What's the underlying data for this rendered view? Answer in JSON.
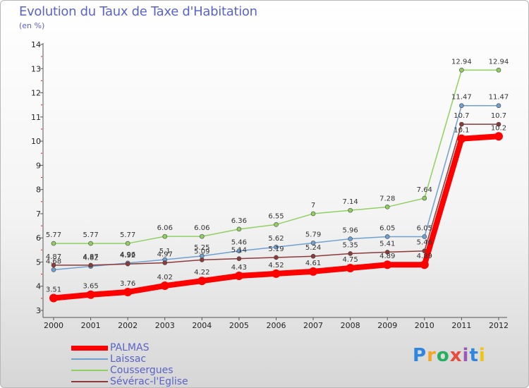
{
  "chart_data": {
    "type": "line",
    "title": "Evolution du Taux de Taxe d'Habitation",
    "subtitle": "(en %)",
    "x": [
      "2000",
      "2001",
      "2002",
      "2003",
      "2004",
      "2005",
      "2006",
      "2007",
      "2008",
      "2009",
      "2010",
      "2011",
      "2012"
    ],
    "ylim": [
      3,
      14
    ],
    "yticks": [
      "3",
      "4",
      "5",
      "6",
      "7",
      "8",
      "9",
      "10",
      "11",
      "12",
      "13",
      "14"
    ],
    "grid": false,
    "legend_position": "bottom-left",
    "series": [
      {
        "name": "PALMAS",
        "color": "#ff0000",
        "values": [
          3.51,
          3.65,
          3.76,
          4.02,
          4.22,
          4.43,
          4.52,
          4.61,
          4.75,
          4.89,
          4.89,
          10.1,
          10.2
        ],
        "labels": [
          "3.51",
          "3.65",
          "3.76",
          "4.02",
          "4.22",
          "4.43",
          "4.52",
          "4.61",
          "4.75",
          "4.89",
          "4.89",
          "10.1",
          "10.2"
        ]
      },
      {
        "name": "Laissac",
        "color": "#6ea0d0",
        "values": [
          4.68,
          4.82,
          4.96,
          5.1,
          5.25,
          5.46,
          5.62,
          5.79,
          5.96,
          6.05,
          6.05,
          11.47,
          11.47
        ],
        "labels": [
          "4.68",
          "4.82",
          "4.96",
          "5.1",
          "5.25",
          "5.46",
          "5.62",
          "5.79",
          "5.96",
          "6.05",
          "6.05",
          "11.47",
          "11.47"
        ]
      },
      {
        "name": "Coussergues",
        "color": "#90d060",
        "values": [
          5.77,
          5.77,
          5.77,
          6.06,
          6.06,
          6.36,
          6.55,
          7,
          7.14,
          7.28,
          7.64,
          12.94,
          12.94
        ],
        "labels": [
          "5.77",
          "5.77",
          "5.77",
          "6.06",
          "6.06",
          "6.36",
          "6.55",
          "7",
          "7.14",
          "7.28",
          "7.64",
          "12.94",
          "12.94"
        ]
      },
      {
        "name": "Sévérac-l'Eglise",
        "color": "#8b3a3a",
        "values": [
          4.87,
          4.87,
          4.92,
          4.97,
          5.09,
          5.14,
          5.19,
          5.24,
          5.35,
          5.41,
          5.46,
          10.7,
          10.7
        ],
        "labels": [
          "4.87",
          "4.87",
          "4.92",
          "4.97",
          "5.09",
          "5.14",
          "5.19",
          "5.24",
          "5.35",
          "5.41",
          "5.46",
          "10.7",
          "10.7"
        ]
      }
    ]
  },
  "logo": {
    "letters": [
      "P",
      "r",
      "o",
      "x",
      "i",
      "t",
      "i"
    ],
    "colors": [
      "#2e86de",
      "#f5a623",
      "#27ae60",
      "#e74c3c",
      "#9b59b6",
      "#2e86de",
      "#f1c40f"
    ]
  }
}
